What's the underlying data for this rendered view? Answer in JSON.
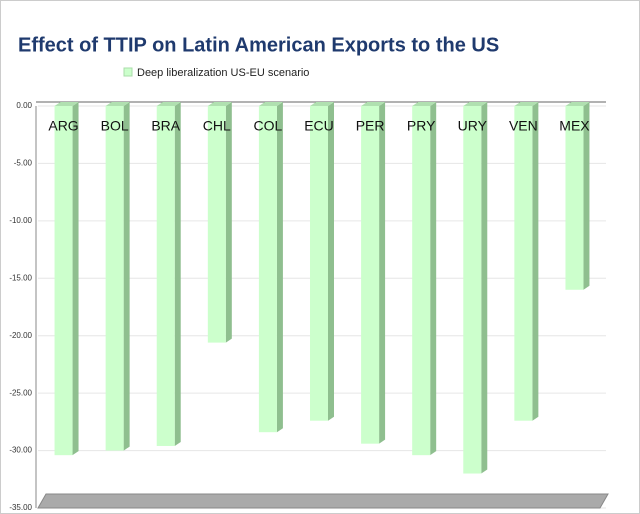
{
  "chart_data": {
    "type": "bar",
    "title": "Effect of TTIP on Latin American Exports to the US",
    "categories": [
      "ARG",
      "BOL",
      "BRA",
      "CHL",
      "COL",
      "ECU",
      "PER",
      "PRY",
      "URY",
      "VEN",
      "MEX"
    ],
    "series": [
      {
        "name": "Deep liberalization US-EU scenario",
        "color": "#ccffcc",
        "values": [
          -30.4,
          -30.0,
          -29.6,
          -20.6,
          -28.4,
          -27.4,
          -29.4,
          -30.4,
          -32.0,
          -27.4,
          -16.0
        ]
      }
    ],
    "ylim": [
      -35,
      0
    ],
    "yticks": [
      {
        "value": 0,
        "label": "0.00"
      },
      {
        "value": -5,
        "label": "-5.00"
      },
      {
        "value": -10,
        "label": "-10.00"
      },
      {
        "value": -15,
        "label": "-15.00"
      },
      {
        "value": -20,
        "label": "-20.00"
      },
      {
        "value": -25,
        "label": "-25.00"
      },
      {
        "value": -30,
        "label": "-30.00"
      },
      {
        "value": -35,
        "label": "-35.00"
      }
    ],
    "grid": true
  }
}
